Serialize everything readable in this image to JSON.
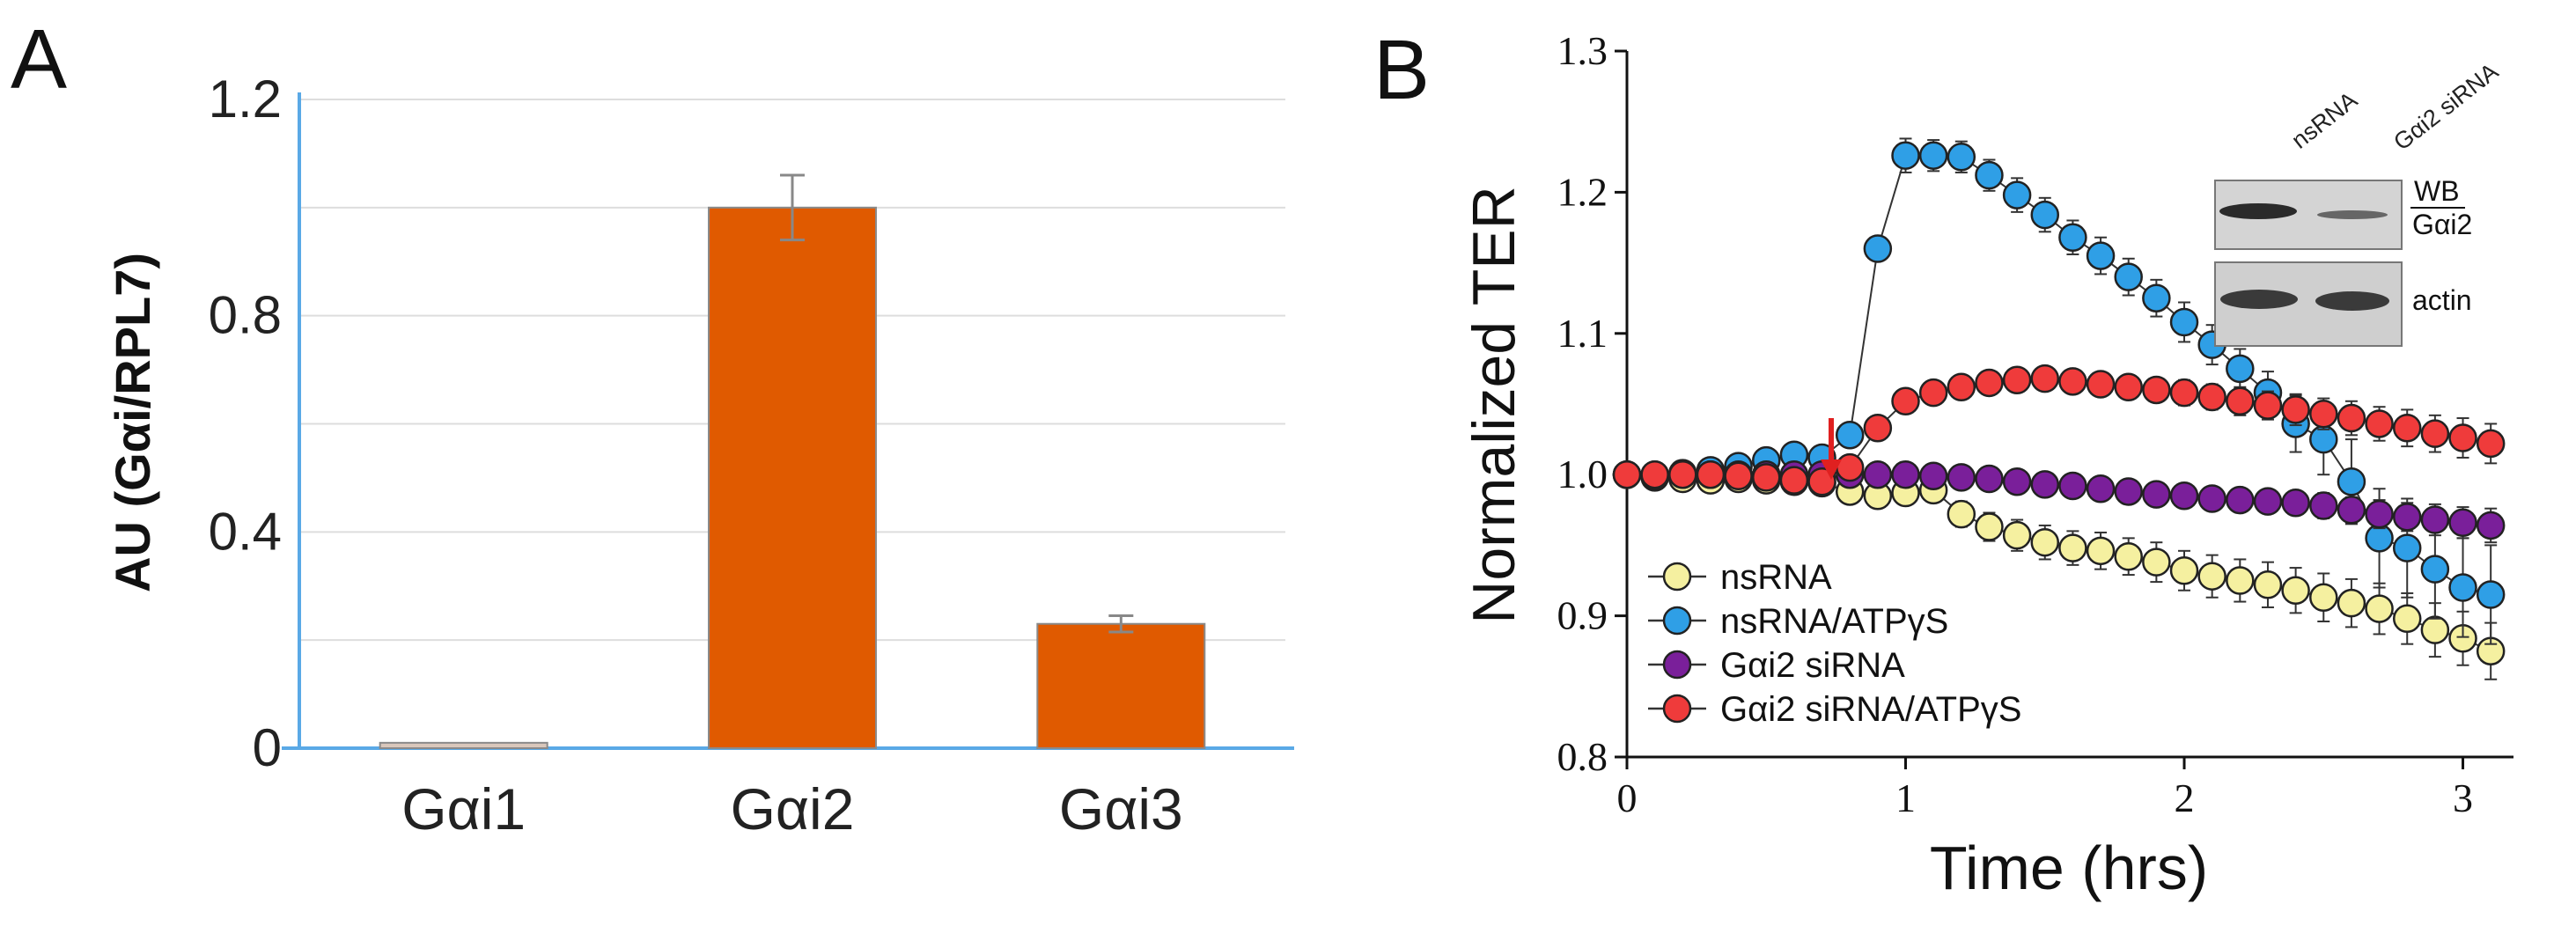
{
  "panels": {
    "a_label": "A",
    "b_label": "B"
  },
  "chart_data": [
    {
      "type": "bar",
      "panel": "A",
      "title": "",
      "ylabel": "AU (Gαi/RPL7)",
      "xlabel": "",
      "categories": [
        "Gαi1",
        "Gαi2",
        "Gαi3"
      ],
      "values": [
        0.01,
        1.0,
        0.23
      ],
      "errors": [
        0.0,
        0.06,
        0.015
      ],
      "ylim": [
        0,
        1.2
      ],
      "yticks": [
        0,
        0.4,
        0.8,
        1.2
      ],
      "ytick_labels": [
        "0",
        "0.4",
        "0.8",
        "1.2"
      ],
      "bar_color": "#e05a00",
      "axis_color": "#5aa9e6",
      "grid": true
    },
    {
      "type": "line",
      "panel": "B",
      "ylabel": "Normalized TER",
      "xlabel": "Time (hrs)",
      "xlim": [
        0,
        3.15
      ],
      "ylim": [
        0.8,
        1.3
      ],
      "xticks": [
        0,
        1,
        2,
        3
      ],
      "xtick_labels": [
        "0",
        "1",
        "2",
        "3"
      ],
      "yticks": [
        0.8,
        0.9,
        1.0,
        1.1,
        1.2,
        1.3
      ],
      "ytick_labels": [
        "0.8",
        "0.9",
        "1.0",
        "1.1",
        "1.2",
        "1.3"
      ],
      "annotation": "treatment arrow at t ≈ 0.7 h",
      "series": [
        {
          "name": "nsRNA",
          "color": "#f5f0a0",
          "x": [
            0,
            0.1,
            0.2,
            0.3,
            0.4,
            0.5,
            0.6,
            0.7,
            0.8,
            0.9,
            1.0,
            1.1,
            1.2,
            1.3,
            1.4,
            1.5,
            1.6,
            1.7,
            1.8,
            1.9,
            2.0,
            2.1,
            2.2,
            2.3,
            2.4,
            2.5,
            2.6,
            2.7,
            2.8,
            2.9,
            3.0,
            3.1
          ],
          "y": [
            1.0,
            0.998,
            0.997,
            0.996,
            0.997,
            0.996,
            0.995,
            0.994,
            0.988,
            0.985,
            0.987,
            0.989,
            0.972,
            0.963,
            0.957,
            0.952,
            0.948,
            0.946,
            0.942,
            0.938,
            0.932,
            0.928,
            0.925,
            0.922,
            0.918,
            0.913,
            0.909,
            0.905,
            0.898,
            0.89,
            0.884,
            0.875
          ],
          "err": [
            0,
            0.003,
            0.003,
            0.004,
            0.004,
            0.004,
            0.005,
            0.005,
            0.006,
            0.006,
            0.007,
            0.008,
            0.009,
            0.01,
            0.011,
            0.012,
            0.012,
            0.013,
            0.013,
            0.014,
            0.014,
            0.015,
            0.015,
            0.016,
            0.016,
            0.017,
            0.017,
            0.018,
            0.018,
            0.019,
            0.019,
            0.02
          ]
        },
        {
          "name": "nsRNA/ATPγS",
          "color": "#2f9fe6",
          "x": [
            0,
            0.1,
            0.2,
            0.3,
            0.4,
            0.5,
            0.6,
            0.7,
            0.8,
            0.9,
            1.0,
            1.1,
            1.2,
            1.3,
            1.4,
            1.5,
            1.6,
            1.7,
            1.8,
            1.9,
            2.0,
            2.1,
            2.2,
            2.3,
            2.4,
            2.5,
            2.6,
            2.7,
            2.8,
            2.9,
            3.0,
            3.1
          ],
          "y": [
            1.0,
            0.999,
            1.001,
            1.003,
            1.006,
            1.01,
            1.014,
            1.012,
            1.028,
            1.16,
            1.226,
            1.226,
            1.225,
            1.212,
            1.198,
            1.184,
            1.168,
            1.155,
            1.14,
            1.125,
            1.108,
            1.092,
            1.075,
            1.058,
            1.036,
            1.025,
            0.995,
            0.955,
            0.948,
            0.933,
            0.92,
            0.915
          ],
          "err": [
            0,
            0.003,
            0.003,
            0.004,
            0.004,
            0.004,
            0.005,
            0.005,
            0.006,
            0.006,
            0.012,
            0.011,
            0.011,
            0.011,
            0.012,
            0.012,
            0.012,
            0.013,
            0.013,
            0.013,
            0.014,
            0.014,
            0.014,
            0.015,
            0.02,
            0.025,
            0.03,
            0.035,
            0.035,
            0.035,
            0.035,
            0.035
          ]
        },
        {
          "name": "Gαi2 siRNA",
          "color": "#7a1f9a",
          "x": [
            0,
            0.1,
            0.2,
            0.3,
            0.4,
            0.5,
            0.6,
            0.7,
            0.8,
            0.9,
            1.0,
            1.1,
            1.2,
            1.3,
            1.4,
            1.5,
            1.6,
            1.7,
            1.8,
            1.9,
            2.0,
            2.1,
            2.2,
            2.3,
            2.4,
            2.5,
            2.6,
            2.7,
            2.8,
            2.9,
            3.0,
            3.1
          ],
          "y": [
            1.0,
            1.0,
            1.0,
            1.0,
            1.0,
            1.0,
            1.0,
            1.0,
            1.0,
            1.0,
            1.0,
            0.999,
            0.998,
            0.997,
            0.995,
            0.993,
            0.992,
            0.99,
            0.988,
            0.986,
            0.985,
            0.983,
            0.982,
            0.981,
            0.98,
            0.978,
            0.975,
            0.972,
            0.97,
            0.968,
            0.966,
            0.964
          ],
          "err": [
            0,
            0.003,
            0.003,
            0.003,
            0.003,
            0.003,
            0.004,
            0.004,
            0.004,
            0.004,
            0.005,
            0.005,
            0.005,
            0.005,
            0.006,
            0.006,
            0.006,
            0.006,
            0.007,
            0.007,
            0.007,
            0.007,
            0.008,
            0.008,
            0.008,
            0.009,
            0.009,
            0.01,
            0.01,
            0.011,
            0.011,
            0.012
          ]
        },
        {
          "name": "Gαi2 siRNA/ATPγS",
          "color": "#ef3b3b",
          "x": [
            0,
            0.1,
            0.2,
            0.3,
            0.4,
            0.5,
            0.6,
            0.7,
            0.8,
            0.9,
            1.0,
            1.1,
            1.2,
            1.3,
            1.4,
            1.5,
            1.6,
            1.7,
            1.8,
            1.9,
            2.0,
            2.1,
            2.2,
            2.3,
            2.4,
            2.5,
            2.6,
            2.7,
            2.8,
            2.9,
            3.0,
            3.1
          ],
          "y": [
            1.0,
            1.0,
            1.0,
            1.0,
            0.999,
            0.998,
            0.996,
            0.995,
            1.005,
            1.033,
            1.052,
            1.058,
            1.062,
            1.065,
            1.067,
            1.068,
            1.066,
            1.064,
            1.062,
            1.06,
            1.058,
            1.055,
            1.052,
            1.049,
            1.046,
            1.043,
            1.04,
            1.036,
            1.033,
            1.029,
            1.026,
            1.022
          ],
          "err": [
            0,
            0.003,
            0.003,
            0.003,
            0.003,
            0.003,
            0.004,
            0.004,
            0.005,
            0.006,
            0.006,
            0.006,
            0.006,
            0.007,
            0.007,
            0.007,
            0.007,
            0.008,
            0.008,
            0.008,
            0.009,
            0.009,
            0.01,
            0.01,
            0.011,
            0.011,
            0.012,
            0.012,
            0.013,
            0.013,
            0.014,
            0.014
          ]
        }
      ],
      "inset": {
        "title": "WB",
        "columns": [
          "nsRNA",
          "Gαi2 siRNA"
        ],
        "rows": [
          "Gαi2",
          "actin"
        ]
      }
    }
  ]
}
